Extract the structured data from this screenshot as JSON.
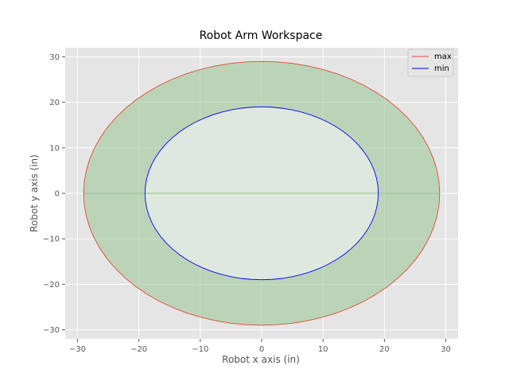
{
  "chart_data": {
    "type": "area",
    "title": "Robot Arm Workspace",
    "xlabel": "Robot x axis (in)",
    "ylabel": "Robot y axis (in)",
    "xlim": [
      -32,
      32
    ],
    "ylim": [
      -32,
      32
    ],
    "xticks": [
      -30,
      -20,
      -10,
      0,
      10,
      20,
      30
    ],
    "yticks": [
      -30,
      -20,
      -10,
      0,
      10,
      20,
      30
    ],
    "grid": true,
    "legend_position": "top-right",
    "series": [
      {
        "name": "max",
        "shape": "circle",
        "radius": 29,
        "color": "#e24a33"
      },
      {
        "name": "min",
        "shape": "circle",
        "radius": 19,
        "color": "#0000ff"
      }
    ],
    "fill_color": "#9fc89a",
    "inner_fill_color": "#dfe8df",
    "axis_background": "#e5e5e5"
  }
}
